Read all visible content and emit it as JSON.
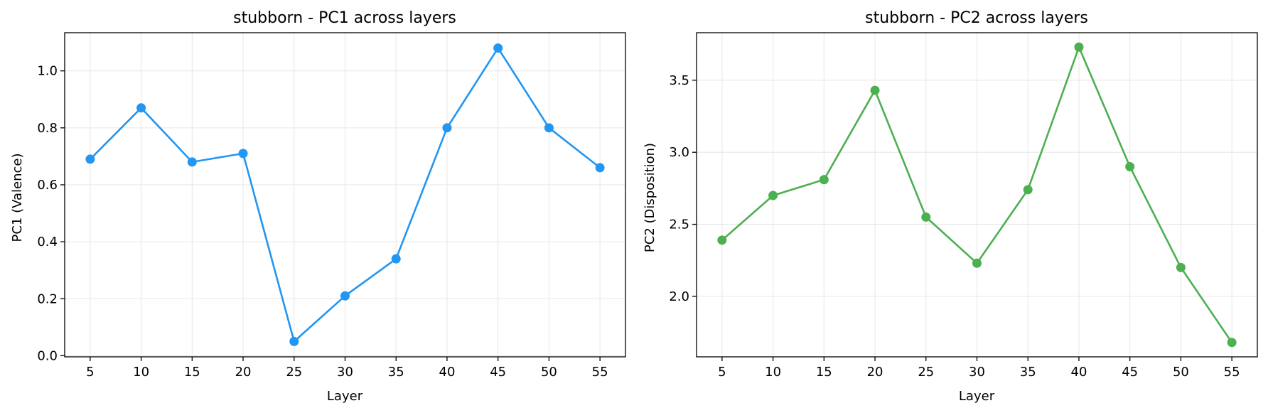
{
  "chart_data": [
    {
      "type": "line",
      "title": "stubborn - PC1 across layers",
      "xlabel": "Layer",
      "ylabel": "PC1 (Valence)",
      "x": [
        5,
        10,
        15,
        20,
        25,
        30,
        35,
        40,
        45,
        50,
        55
      ],
      "series": [
        {
          "values": [
            0.69,
            0.87,
            0.68,
            0.71,
            0.05,
            0.21,
            0.34,
            0.8,
            1.08,
            0.8,
            0.66
          ],
          "color": "#2196f3"
        }
      ],
      "xticks": [
        5,
        10,
        15,
        20,
        25,
        30,
        35,
        40,
        45,
        50,
        55
      ],
      "yticks": [
        0.0,
        0.2,
        0.4,
        0.6,
        0.8,
        1.0
      ],
      "ytick_labels": [
        "0.0",
        "0.2",
        "0.4",
        "0.6",
        "0.8",
        "1.0"
      ],
      "xlim": [
        2.5,
        57.5
      ],
      "ylim": [
        -0.004,
        1.134
      ],
      "grid": true
    },
    {
      "type": "line",
      "title": "stubborn - PC2 across layers",
      "xlabel": "Layer",
      "ylabel": "PC2 (Disposition)",
      "x": [
        5,
        10,
        15,
        20,
        25,
        30,
        35,
        40,
        45,
        50,
        55
      ],
      "series": [
        {
          "values": [
            2.39,
            2.7,
            2.81,
            3.43,
            2.55,
            2.23,
            2.74,
            3.73,
            2.9,
            2.2,
            1.68
          ],
          "color": "#4caf50"
        }
      ],
      "xticks": [
        5,
        10,
        15,
        20,
        25,
        30,
        35,
        40,
        45,
        50,
        55
      ],
      "yticks": [
        2.0,
        2.5,
        3.0,
        3.5
      ],
      "ytick_labels": [
        "2.0",
        "2.5",
        "3.0",
        "3.5"
      ],
      "xlim": [
        2.5,
        57.5
      ],
      "ylim": [
        1.58,
        3.83
      ],
      "grid": true
    }
  ]
}
